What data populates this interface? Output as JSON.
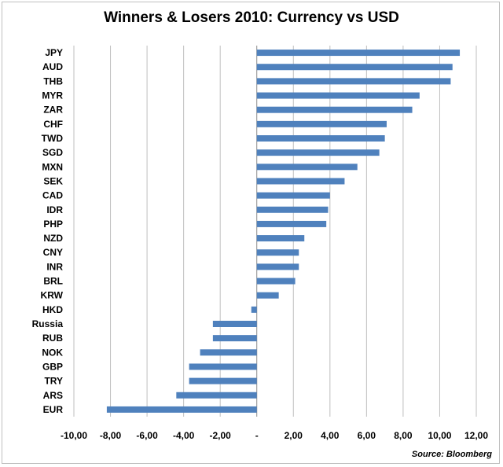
{
  "chart_data": {
    "type": "bar",
    "orientation": "horizontal",
    "title": "Winners & Losers 2010: Currency vs USD",
    "source": "Source: Bloomberg",
    "xlabel": "",
    "ylabel": "",
    "xlim": [
      -10,
      12
    ],
    "xticks": [
      -10,
      -8,
      -6,
      -4,
      -2,
      0,
      2,
      4,
      6,
      8,
      10,
      12
    ],
    "xtick_labels": [
      "-10,00",
      "-8,00",
      "-6,00",
      "-4,00",
      "-2,00",
      "-",
      "2,00",
      "4,00",
      "6,00",
      "8,00",
      "10,00",
      "12,00"
    ],
    "grid": "vertical",
    "bar_color": "#4f81bd",
    "categories": [
      "JPY",
      "AUD",
      "THB",
      "MYR",
      "ZAR",
      "CHF",
      "TWD",
      "SGD",
      "MXN",
      "SEK",
      "CAD",
      "IDR",
      "PHP",
      "NZD",
      "CNY",
      "INR",
      "BRL",
      "KRW",
      "HKD",
      "Russia",
      "RUB",
      "NOK",
      "GBP",
      "TRY",
      "ARS",
      "EUR"
    ],
    "values": [
      11.1,
      10.7,
      10.6,
      8.9,
      8.5,
      7.1,
      7.0,
      6.7,
      5.5,
      4.8,
      4.0,
      3.9,
      3.8,
      2.6,
      2.3,
      2.3,
      2.1,
      1.2,
      -0.3,
      -2.4,
      -2.4,
      -3.1,
      -3.7,
      -3.7,
      -4.4,
      -8.2
    ]
  }
}
